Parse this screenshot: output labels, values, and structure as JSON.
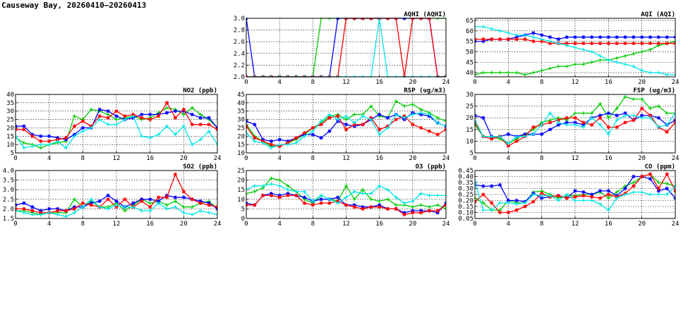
{
  "page": {
    "title": "Causeway Bay, 20260410—20260413"
  },
  "colors": {
    "series": [
      "#00cc00",
      "#0000ff",
      "#ff0000",
      "#00e6e6"
    ]
  },
  "x_ticks": [
    0,
    4,
    8,
    12,
    16,
    20,
    24
  ],
  "chart_data": [
    {
      "id": "aqhi",
      "type": "line",
      "title": "AQHI (AQHI)",
      "xlim": [
        0,
        24
      ],
      "ylim": [
        2.0,
        3.0
      ],
      "yticks": [
        "2.0",
        "2.2",
        "2.4",
        "2.6",
        "2.8",
        "3.0"
      ],
      "grid": true,
      "series": [
        {
          "values": [
            2,
            2,
            2,
            2,
            2,
            2,
            2,
            2,
            2,
            3,
            3,
            3,
            3,
            3,
            3,
            3,
            3,
            3,
            3,
            3,
            3,
            3,
            3,
            3,
            3
          ]
        },
        {
          "values": [
            3,
            2,
            2,
            2,
            2,
            2,
            2,
            2,
            2,
            2,
            2,
            3,
            3,
            3,
            3,
            3,
            3,
            3,
            3,
            3,
            3,
            3,
            3,
            2,
            2
          ]
        },
        {
          "values": [
            2,
            2,
            2,
            2,
            2,
            2,
            2,
            2,
            2,
            2,
            2,
            2,
            3,
            3,
            3,
            3,
            3,
            3,
            3,
            2,
            3,
            3,
            3,
            2,
            2
          ]
        },
        {
          "values": [
            2,
            2,
            2,
            2,
            2,
            2,
            2,
            2,
            2,
            2,
            2,
            2,
            2,
            2,
            2,
            2,
            3,
            2,
            2,
            2,
            2,
            2,
            2,
            2,
            2
          ]
        }
      ]
    },
    {
      "id": "aqi",
      "type": "line",
      "title": "AQI (AQI)",
      "xlim": [
        0,
        24
      ],
      "ylim": [
        38,
        66
      ],
      "yticks": [
        "40",
        "45",
        "50",
        "55",
        "60",
        "65"
      ],
      "grid": true,
      "series": [
        {
          "values": [
            39,
            40,
            40,
            40,
            40,
            40,
            39,
            40,
            41,
            42,
            43,
            43,
            44,
            44,
            45,
            46,
            46,
            47,
            48,
            49,
            50,
            51,
            53,
            54,
            55
          ]
        },
        {
          "values": [
            55,
            55,
            56,
            56,
            56,
            57,
            58,
            59,
            58,
            57,
            56,
            57,
            57,
            57,
            57,
            57,
            57,
            57,
            57,
            57,
            57,
            57,
            57,
            57,
            57
          ]
        },
        {
          "values": [
            56,
            56,
            56,
            56,
            56,
            56,
            56,
            55,
            55,
            54,
            54,
            54,
            54,
            54,
            54,
            54,
            54,
            54,
            54,
            54,
            54,
            54,
            54,
            54,
            54
          ]
        },
        {
          "values": [
            62,
            62,
            61,
            60,
            59,
            58,
            58,
            57,
            56,
            55,
            54,
            53,
            52,
            51,
            50,
            48,
            46,
            45,
            44,
            43,
            41,
            40,
            40,
            39,
            39
          ]
        }
      ]
    },
    {
      "id": "no2",
      "type": "line",
      "title": "NO2 (ppb)",
      "xlim": [
        0,
        24
      ],
      "ylim": [
        5,
        40
      ],
      "yticks": [
        "5",
        "10",
        "15",
        "20",
        "25",
        "30",
        "35",
        "40"
      ],
      "grid": true,
      "series": [
        {
          "values": [
            14,
            11,
            10,
            8,
            10,
            11,
            12,
            27,
            25,
            31,
            30,
            28,
            25,
            26,
            27,
            25,
            26,
            29,
            32,
            31,
            28,
            32,
            28,
            25,
            20
          ]
        },
        {
          "values": [
            21,
            21,
            16,
            15,
            15,
            14,
            13,
            16,
            20,
            20,
            31,
            30,
            27,
            25,
            26,
            28,
            28,
            28,
            29,
            30,
            30,
            28,
            26,
            26,
            20
          ]
        },
        {
          "values": [
            19,
            19,
            15,
            12,
            12,
            13,
            14,
            21,
            24,
            21,
            27,
            26,
            30,
            27,
            28,
            26,
            25,
            27,
            35,
            26,
            31,
            22,
            22,
            22,
            19
          ]
        },
        {
          "values": [
            15,
            8,
            9,
            10,
            10,
            12,
            8,
            15,
            18,
            20,
            25,
            22,
            22,
            25,
            27,
            15,
            14,
            16,
            21,
            16,
            21,
            10,
            13,
            18,
            10
          ]
        }
      ]
    },
    {
      "id": "rsp",
      "type": "line",
      "title": "RSP (ug/m3)",
      "xlim": [
        0,
        24
      ],
      "ylim": [
        10,
        45
      ],
      "yticks": [
        "10",
        "15",
        "20",
        "25",
        "30",
        "35",
        "40",
        "45"
      ],
      "grid": true,
      "series": [
        {
          "values": [
            27,
            20,
            17,
            14,
            14,
            16,
            18,
            21,
            25,
            28,
            32,
            33,
            30,
            33,
            33,
            38,
            32,
            31,
            41,
            38,
            39,
            36,
            34,
            31,
            29
          ]
        },
        {
          "values": [
            29,
            27,
            18,
            17,
            18,
            17,
            19,
            21,
            21,
            19,
            23,
            29,
            27,
            26,
            27,
            30,
            33,
            31,
            33,
            30,
            34,
            33,
            32,
            28,
            26
          ]
        },
        {
          "values": [
            26,
            19,
            17,
            15,
            14,
            16,
            19,
            22,
            25,
            27,
            31,
            32,
            24,
            27,
            27,
            31,
            24,
            26,
            30,
            32,
            27,
            25,
            23,
            21,
            24
          ]
        },
        {
          "values": [
            22,
            17,
            16,
            13,
            15,
            15,
            16,
            20,
            23,
            29,
            33,
            30,
            32,
            28,
            32,
            30,
            21,
            25,
            33,
            31,
            33,
            34,
            33,
            28,
            26
          ]
        }
      ]
    },
    {
      "id": "fsp",
      "type": "line",
      "title": "FSP (ug/m3)",
      "xlim": [
        0,
        24
      ],
      "ylim": [
        5,
        30
      ],
      "yticks": [
        "5",
        "10",
        "15",
        "20",
        "25",
        "30"
      ],
      "grid": true,
      "series": [
        {
          "values": [
            17,
            12,
            12,
            11,
            9,
            11,
            13,
            15,
            18,
            19,
            20,
            19,
            22,
            22,
            22,
            26,
            20,
            24,
            29,
            28,
            28,
            24,
            25,
            22,
            22
          ]
        },
        {
          "values": [
            21,
            20,
            12,
            12,
            13,
            12,
            13,
            13,
            13,
            15,
            17,
            18,
            18,
            17,
            20,
            21,
            22,
            21,
            22,
            19,
            21,
            21,
            20,
            17,
            19
          ]
        },
        {
          "values": [
            18,
            12,
            11,
            12,
            8,
            10,
            12,
            16,
            17,
            18,
            19,
            20,
            20,
            18,
            17,
            20,
            16,
            16,
            18,
            19,
            24,
            21,
            16,
            14,
            18
          ]
        },
        {
          "values": [
            19,
            12,
            12,
            12,
            9,
            12,
            12,
            13,
            17,
            22,
            18,
            17,
            17,
            16,
            20,
            17,
            13,
            19,
            21,
            21,
            20,
            20,
            16,
            17,
            22
          ]
        }
      ]
    },
    {
      "id": "so2",
      "type": "line",
      "title": "SO2 (ppb)",
      "xlim": [
        0,
        24
      ],
      "ylim": [
        1.5,
        4.0
      ],
      "yticks": [
        "1.5",
        "2.0",
        "2.5",
        "3.0",
        "3.5",
        "4.0"
      ],
      "grid": true,
      "series": [
        {
          "values": [
            1.9,
            1.9,
            1.8,
            1.7,
            1.8,
            1.8,
            1.8,
            2.5,
            2.1,
            2.4,
            2.1,
            2.1,
            2.3,
            1.9,
            2.2,
            2.5,
            2.3,
            2.4,
            2.2,
            2.4,
            2.1,
            2.1,
            2.3,
            2.4,
            2.0
          ]
        },
        {
          "values": [
            2.2,
            2.3,
            2.1,
            1.9,
            2.0,
            2.0,
            1.9,
            2.1,
            2.1,
            2.3,
            2.4,
            2.7,
            2.4,
            2.1,
            2.3,
            2.5,
            2.5,
            2.4,
            2.7,
            2.6,
            2.6,
            2.5,
            2.4,
            2.3,
            2.0
          ]
        },
        {
          "values": [
            2.0,
            2.0,
            1.9,
            1.8,
            1.8,
            1.9,
            1.9,
            2.0,
            2.3,
            2.2,
            2.1,
            2.5,
            2.1,
            2.5,
            2.1,
            2.4,
            2.1,
            2.6,
            2.6,
            3.8,
            2.9,
            2.5,
            2.3,
            2.2,
            2.1
          ]
        },
        {
          "values": [
            1.9,
            1.8,
            1.7,
            1.7,
            1.8,
            1.7,
            1.6,
            1.8,
            2.1,
            2.5,
            2.1,
            2.0,
            2.2,
            2.1,
            2.1,
            1.9,
            1.9,
            2.3,
            2.0,
            2.1,
            1.8,
            1.7,
            1.9,
            1.8,
            1.7
          ]
        }
      ]
    },
    {
      "id": "o3",
      "type": "line",
      "title": "O3 (ppb)",
      "xlim": [
        0,
        24
      ],
      "ylim": [
        0,
        25
      ],
      "yticks": [
        "0",
        "5",
        "10",
        "15",
        "20",
        "25"
      ],
      "grid": true,
      "series": [
        {
          "values": [
            13,
            14,
            16,
            21,
            20,
            17,
            14,
            10,
            8,
            12,
            10,
            9,
            17,
            10,
            15,
            10,
            9,
            10,
            7,
            7,
            6,
            7,
            6,
            7,
            5
          ]
        },
        {
          "values": [
            8,
            7,
            12,
            13,
            12,
            13,
            12,
            11,
            9,
            10,
            10,
            11,
            7,
            7,
            6,
            6,
            7,
            5,
            5,
            3,
            4,
            4,
            4,
            3,
            8
          ]
        },
        {
          "values": [
            7,
            7,
            12,
            12,
            11,
            12,
            12,
            8,
            7,
            8,
            8,
            9,
            7,
            6,
            5,
            6,
            6,
            5,
            5,
            2,
            3,
            3,
            4,
            4,
            7
          ]
        },
        {
          "values": [
            15,
            17,
            17,
            18,
            17,
            15,
            14,
            14,
            9,
            12,
            10,
            8,
            11,
            14,
            13,
            13,
            17,
            15,
            11,
            8,
            9,
            13,
            12,
            12,
            12
          ]
        }
      ]
    },
    {
      "id": "co",
      "type": "line",
      "title": "CO (ppm)",
      "xlim": [
        0,
        24
      ],
      "ylim": [
        0.05,
        0.45
      ],
      "yticks": [
        "0.05",
        "0.10",
        "0.15",
        "0.20",
        "0.25",
        "0.30",
        "0.35",
        "0.40",
        "0.45"
      ],
      "grid": true,
      "series": [
        {
          "values": [
            0.22,
            0.18,
            0.12,
            0.12,
            0.2,
            0.18,
            0.18,
            0.27,
            0.28,
            0.25,
            0.22,
            0.24,
            0.24,
            0.25,
            0.25,
            0.27,
            0.22,
            0.27,
            0.32,
            0.35,
            0.4,
            0.42,
            0.35,
            0.34,
            0.32
          ]
        },
        {
          "values": [
            0.33,
            0.32,
            0.32,
            0.33,
            0.2,
            0.2,
            0.19,
            0.26,
            0.22,
            0.23,
            0.24,
            0.22,
            0.28,
            0.27,
            0.25,
            0.28,
            0.28,
            0.24,
            0.3,
            0.4,
            0.4,
            0.38,
            0.28,
            0.3,
            0.22
          ]
        },
        {
          "values": [
            0.19,
            0.25,
            0.18,
            0.1,
            0.1,
            0.12,
            0.15,
            0.19,
            0.26,
            0.23,
            0.24,
            0.22,
            0.23,
            0.24,
            0.23,
            0.22,
            0.25,
            0.23,
            0.26,
            0.32,
            0.4,
            0.42,
            0.3,
            0.42,
            0.28
          ]
        },
        {
          "values": [
            0.36,
            0.12,
            0.12,
            0.18,
            0.18,
            0.17,
            0.18,
            0.25,
            0.24,
            0.24,
            0.2,
            0.25,
            0.2,
            0.2,
            0.2,
            0.17,
            0.12,
            0.22,
            0.25,
            0.27,
            0.27,
            0.25,
            0.25,
            0.25,
            0.32
          ]
        }
      ]
    }
  ]
}
